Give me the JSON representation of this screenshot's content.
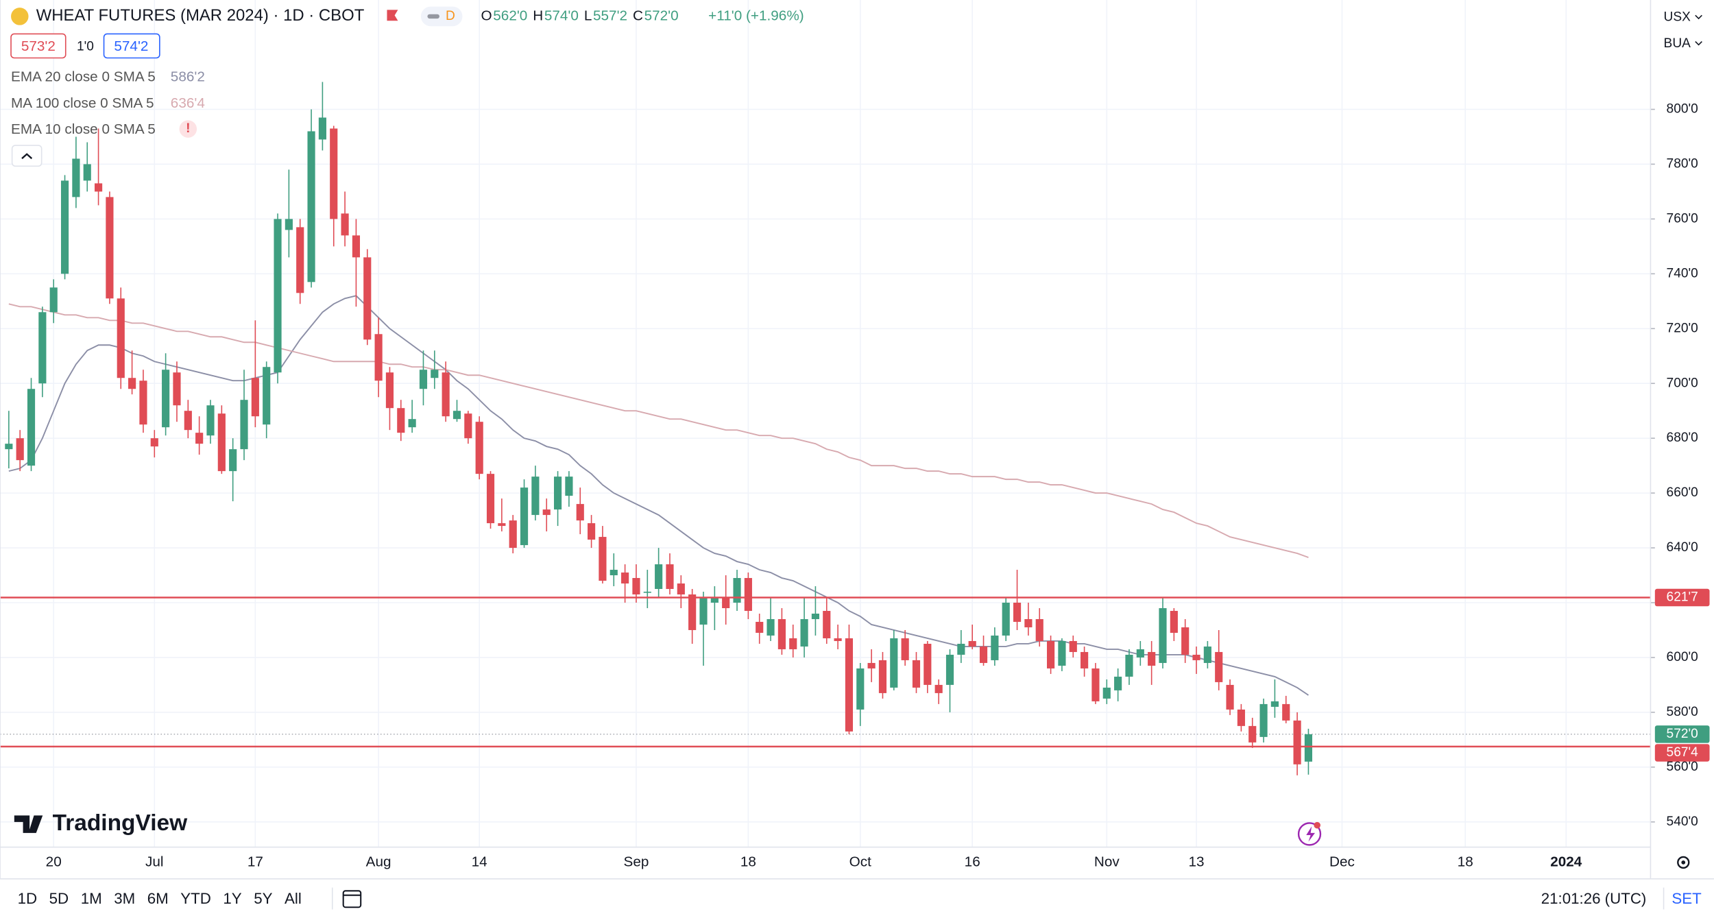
{
  "header": {
    "title": "WHEAT FUTURES (MAR 2024) · 1D · CBOT",
    "interval_badge": "D",
    "ohlc": [
      {
        "key": "O",
        "value": "562'0"
      },
      {
        "key": "H",
        "value": "574'0"
      },
      {
        "key": "L",
        "value": "557'2"
      },
      {
        "key": "C",
        "value": "572'0"
      }
    ],
    "change": "+11'0 (+1.96%)",
    "sell": "573'2",
    "spread": "1'0",
    "buy": "574'2",
    "currency": "USX",
    "unit": "BUA"
  },
  "hidden_indicator": {
    "name": "EMA 10 close 0 SMA 5",
    "flag": "!"
  },
  "logo": "TradingView",
  "ranges": [
    "1D",
    "5D",
    "1M",
    "3M",
    "6M",
    "YTD",
    "1Y",
    "5Y",
    "All"
  ],
  "clock": "21:01:26 (UTC)",
  "session": "SET",
  "chart_data": {
    "type": "candlestick",
    "up_color": "#3f9e80",
    "down_color": "#e04c55",
    "grid": true,
    "ylim": [
      530.8,
      839.9
    ],
    "yticks": [
      {
        "value": 540,
        "label": "540'0"
      },
      {
        "value": 560,
        "label": "560'0"
      },
      {
        "value": 580,
        "label": "580'0"
      },
      {
        "value": 600,
        "label": "600'0"
      },
      {
        "value": 620,
        "label": "620'0"
      },
      {
        "value": 640,
        "label": "640'0"
      },
      {
        "value": 660,
        "label": "660'0"
      },
      {
        "value": 680,
        "label": "680'0"
      },
      {
        "value": 700,
        "label": "700'0"
      },
      {
        "value": 720,
        "label": "720'0"
      },
      {
        "value": 740,
        "label": "740'0"
      },
      {
        "value": 760,
        "label": "760'0"
      },
      {
        "value": 780,
        "label": "780'0"
      },
      {
        "value": 800,
        "label": "800'0"
      }
    ],
    "categories": [
      null,
      null,
      null,
      null,
      "20",
      null,
      null,
      null,
      null,
      null,
      null,
      null,
      null,
      "Jul",
      null,
      null,
      null,
      null,
      null,
      null,
      null,
      null,
      "17",
      null,
      null,
      null,
      null,
      null,
      null,
      null,
      null,
      null,
      null,
      "Aug",
      null,
      null,
      null,
      null,
      null,
      null,
      null,
      null,
      "14",
      null,
      null,
      null,
      null,
      null,
      null,
      null,
      null,
      null,
      null,
      null,
      null,
      null,
      "Sep",
      null,
      null,
      null,
      null,
      null,
      null,
      null,
      null,
      null,
      "18",
      null,
      null,
      null,
      null,
      null,
      null,
      null,
      null,
      null,
      "Oct",
      null,
      null,
      null,
      null,
      null,
      null,
      null,
      null,
      null,
      "16",
      null,
      null,
      null,
      null,
      null,
      null,
      null,
      null,
      null,
      null,
      null,
      "Nov",
      null,
      null,
      null,
      null,
      null,
      null,
      null,
      "13",
      null,
      null,
      null,
      null,
      null,
      null,
      null,
      null,
      null,
      null,
      null,
      null,
      "Dec",
      null,
      null,
      null,
      null,
      null,
      null,
      null,
      null,
      null,
      null,
      "18",
      null,
      null,
      null,
      null,
      null,
      null,
      null,
      null,
      "2024"
    ],
    "open": [
      676,
      680,
      670,
      700,
      726,
      740,
      768,
      774,
      773,
      768,
      731,
      702,
      701,
      680,
      684,
      704,
      690,
      682,
      681,
      689,
      668,
      676,
      702,
      685,
      704,
      756,
      757,
      737,
      789,
      793,
      762,
      754,
      746,
      718,
      704,
      691,
      684,
      698,
      702,
      704,
      687,
      689,
      686,
      667,
      649,
      650,
      641,
      652,
      654,
      654,
      659,
      656,
      649,
      644,
      630,
      631,
      629,
      624,
      625,
      634,
      627,
      623,
      612,
      620,
      622,
      620,
      629,
      613,
      608,
      614,
      607,
      604,
      614,
      617,
      607,
      607,
      581,
      598,
      599,
      589,
      607,
      599,
      605,
      590,
      590,
      601,
      606,
      604,
      599,
      608,
      620,
      614,
      614,
      606,
      597,
      606,
      602,
      596,
      585,
      588,
      593,
      600,
      602,
      598,
      617,
      611,
      601,
      598,
      602,
      590,
      581,
      575,
      571,
      582,
      583,
      577,
      562,
      null,
      null,
      null,
      null,
      null,
      null,
      null,
      null,
      null,
      null,
      null,
      null,
      null,
      null,
      null,
      null,
      null,
      null,
      null,
      null,
      null,
      null,
      null
    ],
    "high": [
      690,
      683,
      702,
      728,
      738,
      776,
      790,
      788,
      793,
      770,
      735,
      712,
      705,
      683,
      711,
      708,
      694,
      688,
      694,
      692,
      680,
      705,
      723,
      708,
      762,
      778,
      760,
      800,
      810,
      794,
      770,
      760,
      749,
      724,
      706,
      694,
      694,
      712,
      712,
      708,
      694,
      690,
      688,
      668,
      658,
      652,
      665,
      670,
      658,
      668,
      668,
      662,
      652,
      648,
      638,
      634,
      634,
      632,
      640,
      638,
      630,
      625,
      624,
      626,
      630,
      632,
      631,
      616,
      622,
      618,
      612,
      622,
      626,
      622,
      612,
      612,
      598,
      603,
      602,
      610,
      610,
      602,
      606,
      592,
      603,
      610,
      612,
      608,
      611,
      622,
      632,
      620,
      618,
      608,
      607,
      608,
      604,
      598,
      592,
      596,
      603,
      606,
      606,
      622,
      618,
      614,
      604,
      606,
      610,
      592,
      583,
      578,
      585,
      592,
      586,
      580,
      574,
      null,
      null,
      null,
      null,
      null,
      null,
      null,
      null,
      null,
      null,
      null,
      null,
      null,
      null,
      null,
      null,
      null,
      null,
      null,
      null,
      null,
      null,
      null
    ],
    "low": [
      669,
      668,
      668,
      695,
      722,
      738,
      764,
      770,
      765,
      729,
      698,
      696,
      682,
      673,
      681,
      686,
      680,
      674,
      678,
      667,
      657,
      672,
      684,
      680,
      700,
      746,
      729,
      735,
      785,
      750,
      750,
      728,
      714,
      695,
      683,
      679,
      682,
      692,
      698,
      686,
      686,
      678,
      665,
      647,
      646,
      638,
      640,
      650,
      646,
      648,
      655,
      645,
      640,
      627,
      626,
      620,
      620,
      618,
      622,
      623,
      618,
      605,
      597,
      610,
      612,
      617,
      614,
      605,
      606,
      601,
      600,
      600,
      608,
      605,
      603,
      572,
      575,
      591,
      585,
      588,
      597,
      587,
      587,
      583,
      580,
      598,
      603,
      597,
      597,
      606,
      610,
      608,
      604,
      594,
      595,
      600,
      593,
      583,
      583,
      584,
      590,
      597,
      590,
      596,
      606,
      598,
      594,
      596,
      588,
      579,
      573,
      567,
      569,
      578,
      576,
      557,
      557.25,
      null,
      null,
      null,
      null,
      null,
      null,
      null,
      null,
      null,
      null,
      null,
      null,
      null,
      null,
      null,
      null,
      null,
      null,
      null,
      null,
      null,
      null,
      null
    ],
    "close": [
      678,
      672,
      698,
      726,
      735,
      774,
      782,
      780,
      770,
      731,
      702,
      698,
      685,
      677,
      705,
      692,
      683,
      678,
      692,
      668,
      676,
      694,
      688,
      706,
      760,
      760,
      733,
      792,
      797,
      760,
      754,
      746,
      716,
      701,
      691,
      682,
      687,
      705,
      705,
      688,
      690,
      680,
      667,
      649,
      648,
      640,
      662,
      666,
      652,
      666,
      666,
      650,
      643,
      628,
      632,
      627,
      623,
      624,
      634,
      625,
      623,
      610,
      622,
      622,
      618,
      629,
      617,
      609,
      614,
      603,
      603,
      614,
      616,
      607,
      606,
      573,
      596,
      596,
      587,
      607,
      599,
      589,
      590,
      587,
      601,
      605,
      604,
      598,
      608,
      620,
      613,
      611,
      606,
      596,
      606,
      602,
      596,
      584,
      589,
      593,
      601,
      603,
      597,
      618,
      609,
      601,
      599,
      604,
      591,
      581,
      575,
      569,
      583,
      584,
      577,
      561,
      572,
      null,
      null,
      null,
      null,
      null,
      null,
      null,
      null,
      null,
      null,
      null,
      null,
      null,
      null,
      null,
      null,
      null,
      null,
      null,
      null,
      null,
      null,
      null
    ],
    "series": [
      {
        "name": "EMA 20 close 0 SMA 5",
        "color": "#8b8ea6",
        "last_label": "586'2",
        "values": [
          668,
          669,
          672,
          680,
          690,
          700,
          707,
          712,
          714,
          714,
          713,
          711,
          710,
          708,
          707,
          706,
          705,
          704,
          703,
          702,
          701,
          701,
          702,
          703,
          704,
          710,
          716,
          721,
          726,
          729,
          731,
          732,
          728,
          724,
          720,
          717,
          714,
          711,
          708,
          705,
          701,
          698,
          694,
          690,
          687,
          683,
          680,
          679,
          677,
          676,
          674,
          670,
          667,
          663,
          660,
          658,
          656,
          654,
          652,
          649,
          646,
          643,
          640,
          638,
          637,
          635,
          634,
          632,
          631,
          629,
          628,
          626,
          624,
          622,
          620,
          617,
          615,
          612,
          611,
          610,
          609,
          608,
          607,
          606,
          605,
          604,
          604,
          604,
          604,
          604,
          605,
          605,
          606,
          606,
          606,
          605,
          605,
          604,
          603,
          603,
          602,
          601,
          601,
          601,
          601,
          601,
          600,
          599,
          598,
          597,
          596,
          595,
          594,
          593,
          591,
          589,
          586.25,
          null,
          null,
          null,
          null,
          null,
          null,
          null,
          null,
          null,
          null,
          null,
          null,
          null,
          null,
          null,
          null,
          null,
          null,
          null,
          null,
          null,
          null,
          null
        ]
      },
      {
        "name": "MA 100 close 0 SMA 5",
        "color": "#d7a9af",
        "last_label": "636'4",
        "values": [
          729,
          728,
          728,
          727,
          726,
          725,
          725,
          724,
          724,
          723,
          723,
          722,
          722,
          721,
          720,
          719,
          719,
          718,
          717,
          717,
          716,
          715,
          715,
          714,
          713,
          712,
          711,
          710,
          709,
          708,
          708,
          708,
          708,
          708,
          707,
          707,
          706,
          706,
          705,
          705,
          704,
          703,
          703,
          702,
          701,
          700,
          699,
          698,
          697,
          696,
          695,
          694,
          693,
          692,
          691,
          690,
          690,
          689,
          688,
          687,
          687,
          686,
          685,
          684,
          683,
          683,
          682,
          681,
          681,
          680,
          680,
          679,
          678,
          676,
          675,
          673,
          672,
          670,
          670,
          670,
          669,
          669,
          668,
          668,
          667,
          667,
          666,
          666,
          666,
          665,
          665,
          664,
          664,
          663,
          663,
          662,
          661,
          660,
          660,
          659,
          658,
          657,
          656,
          654,
          653,
          651,
          649,
          648,
          646,
          644,
          643,
          642,
          641,
          640,
          639,
          638,
          636.5,
          null,
          null,
          null,
          null,
          null,
          null,
          null,
          null,
          null,
          null,
          null,
          null,
          null,
          null,
          null,
          null,
          null,
          null,
          null,
          null,
          null,
          null,
          null
        ]
      }
    ],
    "hlines": [
      {
        "value": 621.875,
        "label": "621'7",
        "color": "#e04c55"
      },
      {
        "value": 567.5,
        "label": "567'4",
        "color": "#e04c55"
      }
    ],
    "last_price": {
      "value": 572,
      "label": "572'0",
      "color": "#3f9e80"
    }
  }
}
